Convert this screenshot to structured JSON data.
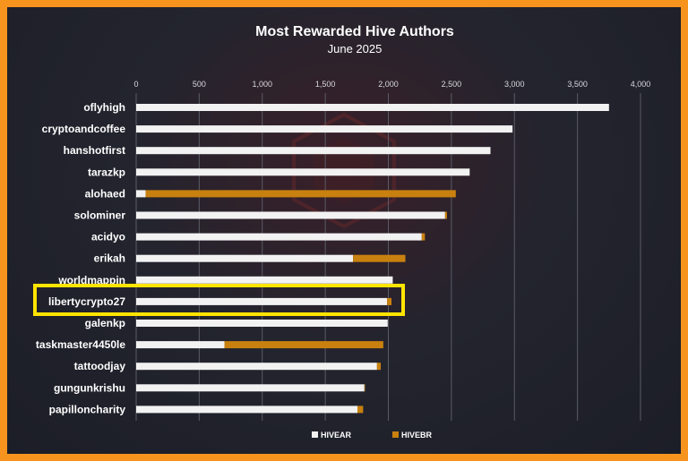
{
  "chart_data": {
    "type": "bar",
    "orientation": "horizontal",
    "stacked": true,
    "title": "Most Rewarded Hive Authors",
    "subtitle": "June 2025",
    "xlim": [
      0,
      4000
    ],
    "x_ticks": [
      "0",
      "500",
      "1,000",
      "1,500",
      "2,000",
      "2,500",
      "3,000",
      "3,500",
      "4,000"
    ],
    "x_tick_values": [
      0,
      500,
      1000,
      1500,
      2000,
      2500,
      3000,
      3500,
      4000
    ],
    "grid": "vertical",
    "legend_position": "bottom",
    "categories": [
      "oflyhigh",
      "cryptoandcoffee",
      "hanshotfirst",
      "tarazkp",
      "alohaed",
      "solominer",
      "acidyo",
      "erikah",
      "worldmappin",
      "libertycrypto27",
      "galenkp",
      "taskmaster4450le",
      "tattoodjay",
      "gungunkrishu",
      "papilloncharity"
    ],
    "highlighted_category": "libertycrypto27",
    "series": [
      {
        "name": "HIVEAR",
        "color": "#f2f2f2",
        "values": [
          3750,
          2985,
          2810,
          2645,
          75,
          2450,
          2265,
          1720,
          2035,
          1990,
          1995,
          700,
          1910,
          1810,
          1755
        ]
      },
      {
        "name": "HIVEBR",
        "color": "#c8810f",
        "values": [
          0,
          0,
          0,
          0,
          2460,
          15,
          25,
          415,
          0,
          35,
          0,
          1260,
          30,
          5,
          45
        ]
      }
    ]
  },
  "colors": {
    "frame_border": "#f7941d",
    "background": "#1e1f28",
    "highlight_box": "#ffe400"
  }
}
